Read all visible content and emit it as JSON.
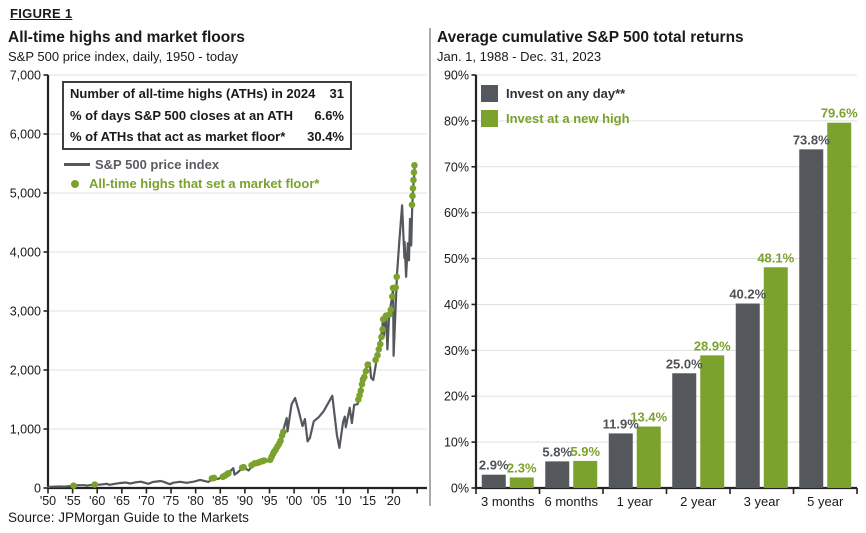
{
  "figure_label": "FIGURE 1",
  "source": "Source: JPMorgan Guide to the Markets",
  "colors": {
    "gray": "#54585c",
    "gray_text": "#4e5256",
    "green": "#7aa22d",
    "grid": "#e0e0e0",
    "axis": "#222222",
    "divider": "#ababab",
    "text": "#1a1a1a"
  },
  "chart_data": [
    {
      "type": "line",
      "title": "All-time highs and market floors",
      "subtitle": "S&P 500 price index, daily, 1950 - today",
      "xlim": [
        1950,
        2027
      ],
      "ylim": [
        0,
        7000
      ],
      "grid": true,
      "y_ticks": [
        0,
        1000,
        2000,
        3000,
        4000,
        5000,
        6000,
        7000
      ],
      "x_ticks": [
        {
          "year": 1950,
          "label": "'50"
        },
        {
          "year": 1955,
          "label": "'55"
        },
        {
          "year": 1960,
          "label": "'60"
        },
        {
          "year": 1965,
          "label": "'65"
        },
        {
          "year": 1970,
          "label": "'70"
        },
        {
          "year": 1975,
          "label": "'75"
        },
        {
          "year": 1980,
          "label": "'80"
        },
        {
          "year": 1985,
          "label": "'85"
        },
        {
          "year": 1990,
          "label": "'90"
        },
        {
          "year": 1995,
          "label": "'95"
        },
        {
          "year": 2000,
          "label": "'00"
        },
        {
          "year": 2005,
          "label": "'05"
        },
        {
          "year": 2010,
          "label": "'10"
        },
        {
          "year": 2015,
          "label": "'15"
        },
        {
          "year": 2020,
          "label": "'20"
        },
        {
          "year": 2025,
          "label": ""
        }
      ],
      "stats": [
        {
          "label": "Number of all-time highs (ATHs) in 2024",
          "value": "31"
        },
        {
          "label": "% of days S&P 500 closes at an ATH",
          "value": "6.6%"
        },
        {
          "label": "% of ATHs that act as market floor*",
          "value": "30.4%"
        }
      ],
      "series": [
        {
          "name": "S&P 500 price index",
          "type": "line",
          "points": [
            [
              1950,
              17
            ],
            [
              1951,
              22
            ],
            [
              1952.5,
              25
            ],
            [
              1953.5,
              23
            ],
            [
              1954.5,
              33
            ],
            [
              1955.2,
              40
            ],
            [
              1956.3,
              48
            ],
            [
              1957.5,
              47
            ],
            [
              1957.9,
              39
            ],
            [
              1958.8,
              53
            ],
            [
              1959.5,
              59
            ],
            [
              1960.5,
              56
            ],
            [
              1961.9,
              71
            ],
            [
              1962.5,
              54
            ],
            [
              1963.5,
              70
            ],
            [
              1964.5,
              83
            ],
            [
              1965.8,
              93
            ],
            [
              1966.7,
              76
            ],
            [
              1967.7,
              95
            ],
            [
              1968.9,
              107
            ],
            [
              1970.4,
              72
            ],
            [
              1971.3,
              101
            ],
            [
              1972.95,
              119
            ],
            [
              1973.7,
              99
            ],
            [
              1974.75,
              64
            ],
            [
              1975.5,
              90
            ],
            [
              1976.8,
              105
            ],
            [
              1978.2,
              88
            ],
            [
              1979.7,
              108
            ],
            [
              1980.9,
              138
            ],
            [
              1982.6,
              104
            ],
            [
              1983.7,
              170
            ],
            [
              1984.5,
              152
            ],
            [
              1985.9,
              207
            ],
            [
              1986.6,
              250
            ],
            [
              1987.65,
              335
            ],
            [
              1987.9,
              226
            ],
            [
              1988.5,
              262
            ],
            [
              1989.7,
              352
            ],
            [
              1990.75,
              297
            ],
            [
              1991.9,
              415
            ],
            [
              1992.9,
              435
            ],
            [
              1993.9,
              465
            ],
            [
              1994.3,
              447
            ],
            [
              1995.0,
              465
            ],
            [
              1995.9,
              615
            ],
            [
              1996.9,
              745
            ],
            [
              1997.7,
              950
            ],
            [
              1998.5,
              1185
            ],
            [
              1998.65,
              960
            ],
            [
              1999.5,
              1420
            ],
            [
              2000.2,
              1525
            ],
            [
              2000.9,
              1320
            ],
            [
              2001.7,
              1050
            ],
            [
              2002.2,
              1170
            ],
            [
              2002.75,
              790
            ],
            [
              2003.2,
              850
            ],
            [
              2004,
              1130
            ],
            [
              2005,
              1200
            ],
            [
              2006,
              1300
            ],
            [
              2007.75,
              1562
            ],
            [
              2008.7,
              900
            ],
            [
              2009.2,
              680
            ],
            [
              2009.95,
              1120
            ],
            [
              2010.3,
              1210
            ],
            [
              2010.5,
              1030
            ],
            [
              2011.3,
              1360
            ],
            [
              2011.75,
              1100
            ],
            [
              2012.2,
              1410
            ],
            [
              2012.9,
              1420
            ],
            [
              2013.9,
              1840
            ],
            [
              2014.9,
              2090
            ],
            [
              2015.35,
              2120
            ],
            [
              2015.65,
              1870
            ],
            [
              2016.1,
              1830
            ],
            [
              2016.9,
              2250
            ],
            [
              2017.9,
              2680
            ],
            [
              2018.05,
              2870
            ],
            [
              2018.25,
              2580
            ],
            [
              2018.7,
              2930
            ],
            [
              2018.95,
              2350
            ],
            [
              2019.3,
              2920
            ],
            [
              2019.9,
              3240
            ],
            [
              2020.12,
              3390
            ],
            [
              2020.22,
              2240
            ],
            [
              2020.9,
              3620
            ],
            [
              2021.4,
              4200
            ],
            [
              2021.95,
              4790
            ],
            [
              2022.4,
              3900
            ],
            [
              2022.45,
              4170
            ],
            [
              2022.75,
              3580
            ],
            [
              2023.1,
              4150
            ],
            [
              2023.35,
              3860
            ],
            [
              2023.55,
              4560
            ],
            [
              2023.8,
              4110
            ],
            [
              2024.0,
              4760
            ],
            [
              2024.2,
              5100
            ],
            [
              2024.35,
              5250
            ],
            [
              2024.5,
              5470
            ]
          ]
        },
        {
          "name": "All-time highs that set a market floor*",
          "type": "scatter",
          "points": [
            [
              1955.2,
              40
            ],
            [
              1959.5,
              59
            ],
            [
              1983.3,
              163
            ],
            [
              1983.75,
              170
            ],
            [
              1985.5,
              190
            ],
            [
              1985.95,
              208
            ],
            [
              1986.35,
              232
            ],
            [
              1986.65,
              250
            ],
            [
              1989.45,
              345
            ],
            [
              1989.75,
              352
            ],
            [
              1991.35,
              385
            ],
            [
              1991.95,
              417
            ],
            [
              1992.5,
              425
            ],
            [
              1992.95,
              437
            ],
            [
              1993.4,
              452
            ],
            [
              1993.9,
              466
            ],
            [
              1995.15,
              478
            ],
            [
              1995.45,
              530
            ],
            [
              1995.75,
              585
            ],
            [
              1995.95,
              615
            ],
            [
              1996.25,
              650
            ],
            [
              1996.6,
              700
            ],
            [
              1996.95,
              748
            ],
            [
              1997.25,
              800
            ],
            [
              1997.55,
              890
            ],
            [
              1997.8,
              950
            ],
            [
              2013.05,
              1500
            ],
            [
              2013.3,
              1570
            ],
            [
              2013.55,
              1650
            ],
            [
              2013.8,
              1760
            ],
            [
              2013.98,
              1840
            ],
            [
              2014.25,
              1880
            ],
            [
              2014.6,
              1980
            ],
            [
              2014.95,
              2090
            ],
            [
              2016.55,
              2170
            ],
            [
              2016.95,
              2250
            ],
            [
              2017.2,
              2350
            ],
            [
              2017.5,
              2440
            ],
            [
              2017.75,
              2560
            ],
            [
              2017.98,
              2690
            ],
            [
              2018.1,
              2860
            ],
            [
              2018.65,
              2920
            ],
            [
              2019.35,
              2940
            ],
            [
              2019.65,
              3020
            ],
            [
              2019.95,
              3245
            ],
            [
              2020.1,
              3390
            ],
            [
              2020.65,
              3400
            ],
            [
              2020.85,
              3580
            ],
            [
              2023.95,
              4800
            ],
            [
              2024.05,
              4950
            ],
            [
              2024.15,
              5080
            ],
            [
              2024.25,
              5220
            ],
            [
              2024.35,
              5350
            ],
            [
              2024.45,
              5470
            ]
          ]
        }
      ]
    },
    {
      "type": "bar",
      "title": "Average cumulative S&P 500 total returns",
      "subtitle": "Jan. 1, 1988 - Dec. 31, 2023",
      "categories": [
        "3 months",
        "6 months",
        "1 year",
        "2 year",
        "3 year",
        "5 year"
      ],
      "series": [
        {
          "name": "Invest on any day**",
          "values": [
            2.9,
            5.8,
            11.9,
            25.0,
            40.2,
            73.8
          ]
        },
        {
          "name": "Invest at a new high",
          "values": [
            2.3,
            5.9,
            13.4,
            28.9,
            48.1,
            79.6
          ]
        }
      ],
      "ylim": [
        0,
        90
      ],
      "y_tick_step": 10,
      "grid": true,
      "legend_position": "top-left"
    }
  ]
}
